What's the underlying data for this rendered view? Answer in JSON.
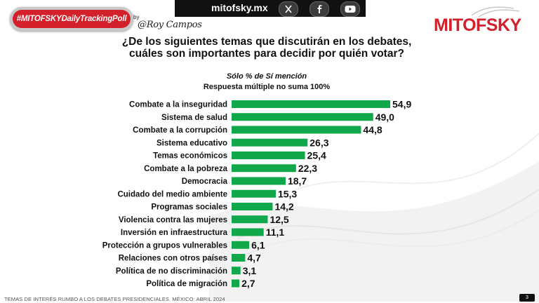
{
  "badge": {
    "label": "#MITOFSKYDailyTrackingPoll"
  },
  "byline": {
    "by": "by",
    "signature": "@Roy Campos"
  },
  "topbar": {
    "site": "mitofsky.mx",
    "icons": [
      "x-icon",
      "facebook-icon",
      "youtube-icon"
    ]
  },
  "brand": {
    "name": "MITOFSKY",
    "color": "#d3202a"
  },
  "title": "¿De los siguientes temas que discutirán en los debates, cuáles son importantes para decidir por quién votar?",
  "subtitle1": "Sólo % de Sí mención",
  "subtitle2": "Respuesta múltiple no suma 100%",
  "footer": "TEMAS DE INTERÉS RUMBO A LOS DEBATES PRESIDENCIALES. MÉXICO: ABRIL 2024",
  "page_number": "3",
  "chart_data": {
    "type": "bar",
    "orientation": "horizontal",
    "categories": [
      "Combate a la inseguridad",
      "Sistema de salud",
      "Combate a la corrupción",
      "Sistema educativo",
      "Temas económicos",
      "Combate a la pobreza",
      "Democracia",
      "Cuidado del medio ambiente",
      "Programas sociales",
      "Violencia contra las mujeres",
      "Inversión en infraestructura",
      "Protección a grupos vulnerables",
      "Relaciones con otros países",
      "Política de no discriminación",
      "Política de migración"
    ],
    "values": [
      54.9,
      49.0,
      44.8,
      26.3,
      25.4,
      22.3,
      18.7,
      15.3,
      14.2,
      12.5,
      11.1,
      6.1,
      4.7,
      3.1,
      2.7
    ],
    "value_labels": [
      "54,9",
      "49,0",
      "44,8",
      "26,3",
      "25,4",
      "22,3",
      "18,7",
      "15,3",
      "14,2",
      "12,5",
      "11,1",
      "6,1",
      "4,7",
      "3,1",
      "2,7"
    ],
    "bar_color": "#10a84a",
    "xlim": [
      0,
      55
    ],
    "grid": false,
    "legend": "none"
  }
}
